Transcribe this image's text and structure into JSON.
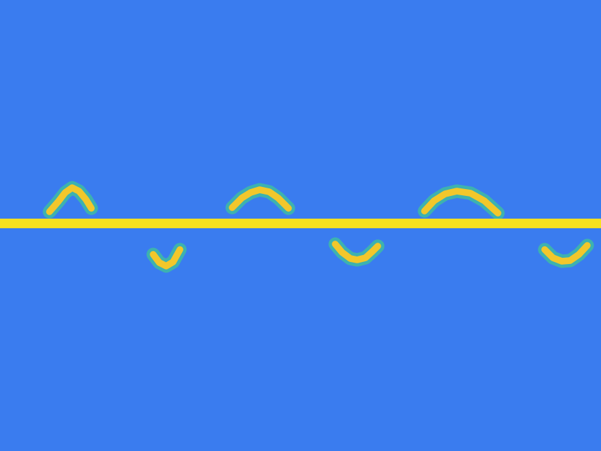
{
  "chart_data": {
    "type": "line",
    "tick_labels": false,
    "grid": false,
    "xlim": [
      0,
      875
    ],
    "ylim": [
      -331,
      325
    ],
    "series": [
      {
        "color": "#f7e11f",
        "x": [
          0,
          875
        ],
        "values": [
          0,
          0
        ]
      },
      {
        "color": "#f2c72b",
        "x": [
          72,
          85,
          95,
          105,
          115,
          125,
          133
        ],
        "values": [
          17,
          32,
          45,
          52,
          47,
          35,
          22
        ]
      },
      {
        "color": "#f2c72b",
        "x": [
          338,
          352,
          365,
          378,
          392,
          405,
          420
        ],
        "values": [
          23,
          37,
          45,
          49,
          46,
          37,
          22
        ]
      },
      {
        "color": "#f2c72b",
        "x": [
          618,
          632,
          648,
          665,
          685,
          705,
          725
        ],
        "values": [
          18,
          33,
          43,
          47,
          44,
          33,
          15
        ]
      },
      {
        "color": "#f2c72b",
        "x": [
          223,
          232,
          242,
          252,
          262
        ],
        "values": [
          -45,
          -57,
          -62,
          -56,
          -38
        ]
      },
      {
        "color": "#f2c72b",
        "x": [
          488,
          498,
          510,
          520,
          532,
          542,
          550
        ],
        "values": [
          -30,
          -42,
          -51,
          -53,
          -50,
          -41,
          -33
        ]
      },
      {
        "color": "#f2c72b",
        "x": [
          793,
          805,
          818,
          830,
          843,
          855
        ],
        "values": [
          -38,
          -50,
          -55,
          -54,
          -45,
          -32
        ]
      }
    ]
  }
}
